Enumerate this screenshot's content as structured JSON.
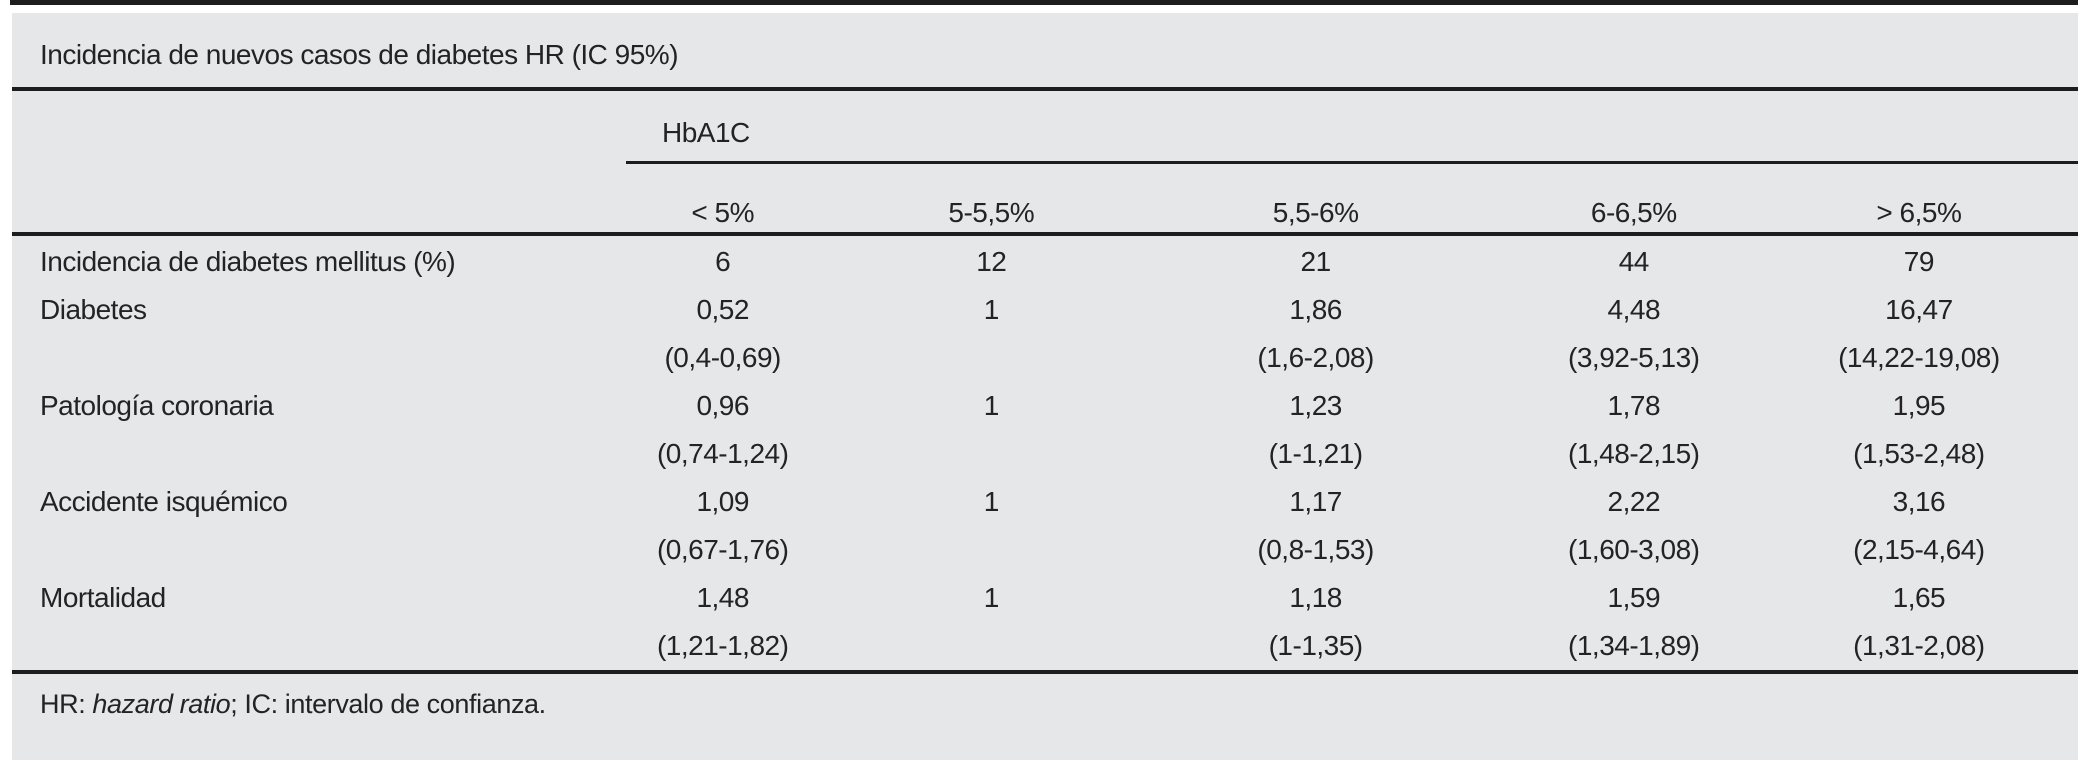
{
  "title": "Incidencia de nuevos casos de diabetes HR (IC 95%)",
  "colors": {
    "panel_background": "#e6e7e8",
    "text": "#232323",
    "rule": "#1d1d1d"
  },
  "table": {
    "group_header": "HbA1C",
    "columns": [
      "< 5%",
      "5-5,5%",
      "5,5-6%",
      "6-6,5%",
      "> 6,5%"
    ],
    "rows": [
      {
        "label": "Incidencia de diabetes mellitus (%)",
        "values": [
          "6",
          "12",
          "21",
          "44",
          "79"
        ]
      },
      {
        "label": "Diabetes",
        "values": [
          "0,52",
          "1",
          "1,86",
          "4,48",
          "16,47"
        ],
        "ci": [
          "(0,4-0,69)",
          "",
          "(1,6-2,08)",
          "(3,92-5,13)",
          "(14,22-19,08)"
        ]
      },
      {
        "label": "Patología coronaria",
        "values": [
          "0,96",
          "1",
          "1,23",
          "1,78",
          "1,95"
        ],
        "ci": [
          "(0,74-1,24)",
          "",
          "(1-1,21)",
          "(1,48-2,15)",
          "(1,53-2,48)"
        ]
      },
      {
        "label": "Accidente isquémico",
        "values": [
          "1,09",
          "1",
          "1,17",
          "2,22",
          "3,16"
        ],
        "ci": [
          "(0,67-1,76)",
          "",
          "(0,8-1,53)",
          "(1,60-3,08)",
          "(2,15-4,64)"
        ]
      },
      {
        "label": "Mortalidad",
        "values": [
          "1,48",
          "1",
          "1,18",
          "1,59",
          "1,65"
        ],
        "ci": [
          "(1,21-1,82)",
          "",
          "(1-1,35)",
          "(1,34-1,89)",
          "(1,31-2,08)"
        ]
      }
    ]
  },
  "footnote": {
    "prefix": "HR: ",
    "italic": "hazard ratio",
    "suffix": "; IC: intervalo de confianza."
  },
  "chart_data": {
    "type": "table",
    "title": "Incidencia de nuevos casos de diabetes HR (IC 95%)",
    "column_group": "HbA1C",
    "categories": [
      "< 5%",
      "5-5,5%",
      "5,5-6%",
      "6-6,5%",
      "> 6,5%"
    ],
    "series": [
      {
        "name": "Incidencia de diabetes mellitus (%)",
        "values": [
          6,
          12,
          21,
          44,
          79
        ]
      },
      {
        "name": "Diabetes HR",
        "values": [
          0.52,
          1,
          1.86,
          4.48,
          16.47
        ],
        "ci": [
          [
            0.4,
            0.69
          ],
          null,
          [
            1.6,
            2.08
          ],
          [
            3.92,
            5.13
          ],
          [
            14.22,
            19.08
          ]
        ]
      },
      {
        "name": "Patología coronaria HR",
        "values": [
          0.96,
          1,
          1.23,
          1.78,
          1.95
        ],
        "ci": [
          [
            0.74,
            1.24
          ],
          null,
          [
            1,
            1.21
          ],
          [
            1.48,
            2.15
          ],
          [
            1.53,
            2.48
          ]
        ]
      },
      {
        "name": "Accidente isquémico HR",
        "values": [
          1.09,
          1,
          1.17,
          2.22,
          3.16
        ],
        "ci": [
          [
            0.67,
            1.76
          ],
          null,
          [
            0.8,
            1.53
          ],
          [
            1.6,
            3.08
          ],
          [
            2.15,
            4.64
          ]
        ]
      },
      {
        "name": "Mortalidad HR",
        "values": [
          1.48,
          1,
          1.18,
          1.59,
          1.65
        ],
        "ci": [
          [
            1.21,
            1.82
          ],
          null,
          [
            1,
            1.35
          ],
          [
            1.34,
            1.89
          ],
          [
            1.31,
            2.08
          ]
        ]
      }
    ]
  }
}
